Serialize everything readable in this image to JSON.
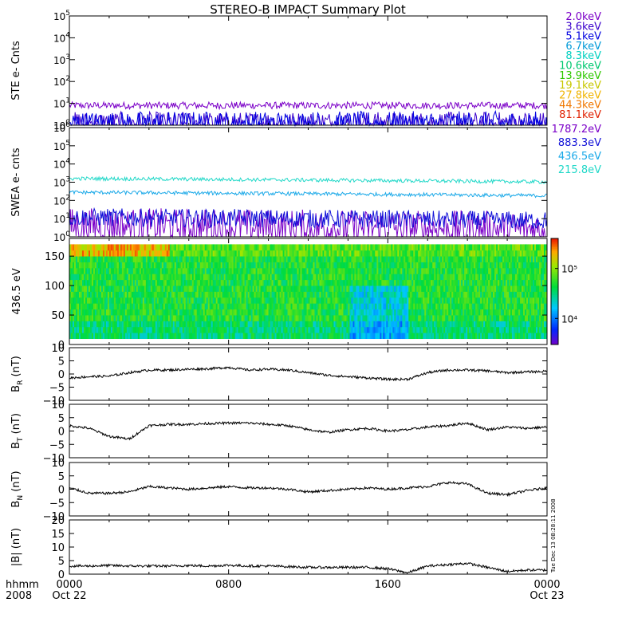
{
  "chart_data": {
    "type": "line",
    "title": "STEREO-B IMPACT Summary Plot",
    "x_axis": {
      "ticks": [
        "0000",
        "0800",
        "1600",
        "0000"
      ],
      "tick_hours": [
        0,
        8,
        16,
        24
      ],
      "date_labels": [
        "Oct 22",
        "",
        "",
        "Oct 23"
      ],
      "corner_labels": [
        "hhmm",
        "2008"
      ]
    },
    "timestamp": "Tue Dec 13 08:28:11 2008",
    "panels": [
      {
        "id": "ste",
        "ylabel": "STE e- Cnts",
        "scale": "log",
        "ylim": [
          1,
          100000
        ],
        "ytick_exponents": [
          0,
          1,
          2,
          3,
          4,
          5
        ],
        "series": [
          {
            "name": "2.0keV",
            "color": "#7b00c8",
            "level": 8,
            "noise": 0.08
          },
          {
            "name": "3.6keV",
            "color": "#3a00cc",
            "level": 1.3,
            "noise": 0.25
          },
          {
            "name": "5.1keV",
            "color": "#0000e0",
            "level": 1.1,
            "noise": 0.3
          },
          {
            "name": "6.7keV",
            "color": "#009ad8",
            "level": null
          },
          {
            "name": "8.3keV",
            "color": "#00d0c0",
            "level": null
          },
          {
            "name": "10.6keV",
            "color": "#00c870",
            "level": null
          },
          {
            "name": "13.9keV",
            "color": "#30c800",
            "level": null
          },
          {
            "name": "19.1keV",
            "color": "#c8c800",
            "level": null
          },
          {
            "name": "27.8keV",
            "color": "#f0b400",
            "level": null
          },
          {
            "name": "44.3keV",
            "color": "#f07800",
            "level": null
          },
          {
            "name": "81.1keV",
            "color": "#e02000",
            "level": null
          }
        ]
      },
      {
        "id": "swea",
        "ylabel": "SWEA e- cnts",
        "scale": "log",
        "ylim": [
          1,
          1000000
        ],
        "ytick_exponents": [
          0,
          1,
          2,
          3,
          4,
          5,
          6
        ],
        "series": [
          {
            "name": "1787.2eV",
            "color": "#7b00c8",
            "level": 4,
            "noise": 0.5
          },
          {
            "name": "883.3eV",
            "color": "#1010d8",
            "level": 12,
            "noise": 0.25
          },
          {
            "name": "436.5eV",
            "color": "#18a8e8",
            "level": 280,
            "noise": 0.05
          },
          {
            "name": "215.8eV",
            "color": "#20d8c8",
            "level": 1600,
            "noise": 0.05
          }
        ]
      },
      {
        "id": "pad",
        "ylabel": "436.5 eV",
        "type": "heatmap",
        "ylim": [
          0,
          180
        ],
        "yticks": [
          0,
          50,
          100,
          150
        ],
        "colorbar": {
          "scale": "log",
          "tick_labels": [
            "10⁵",
            "10⁴"
          ],
          "tick_values": [
            100000,
            10000
          ]
        }
      },
      {
        "id": "br",
        "ylabel": "B",
        "ylabel_sub": "R",
        "ylabel_unit": "(nT)",
        "scale": "linear",
        "ylim": [
          -10,
          10
        ],
        "yticks": [
          -10,
          -5,
          0,
          5,
          10
        ],
        "x": [
          0,
          1,
          2,
          3,
          4,
          5,
          6,
          7,
          8,
          9,
          10,
          11,
          12,
          13,
          14,
          15,
          16,
          17,
          18,
          19,
          20,
          21,
          22,
          23,
          24
        ],
        "values": [
          -1.5,
          -1.0,
          -0.8,
          0.5,
          1.5,
          1.5,
          1.8,
          2.0,
          2.5,
          1.5,
          1.8,
          1.5,
          0.5,
          -0.5,
          -1.0,
          -1.5,
          -2.0,
          -2.0,
          0.5,
          1.5,
          1.5,
          1.2,
          0.5,
          0.8,
          1.0
        ],
        "color": "#000000"
      },
      {
        "id": "bt",
        "ylabel": "B",
        "ylabel_sub": "T",
        "ylabel_unit": "(nT)",
        "scale": "linear",
        "ylim": [
          -10,
          10
        ],
        "yticks": [
          -10,
          -5,
          0,
          5,
          10
        ],
        "x": [
          0,
          1,
          2,
          3,
          4,
          5,
          6,
          7,
          8,
          9,
          10,
          11,
          12,
          13,
          14,
          15,
          16,
          17,
          18,
          19,
          20,
          21,
          22,
          23,
          24
        ],
        "values": [
          2.0,
          1.0,
          -2.0,
          -3.0,
          2.0,
          2.5,
          2.5,
          2.8,
          3.0,
          3.0,
          2.5,
          2.0,
          0.5,
          -0.5,
          0.5,
          1.0,
          0.0,
          0.5,
          1.5,
          2.0,
          3.0,
          0.5,
          1.5,
          1.0,
          1.5
        ],
        "color": "#000000"
      },
      {
        "id": "bn",
        "ylabel": "B",
        "ylabel_sub": "N",
        "ylabel_unit": "(nT)",
        "scale": "linear",
        "ylim": [
          -10,
          10
        ],
        "yticks": [
          -10,
          -5,
          0,
          5,
          10
        ],
        "x": [
          0,
          1,
          2,
          3,
          4,
          5,
          6,
          7,
          8,
          9,
          10,
          11,
          12,
          13,
          14,
          15,
          16,
          17,
          18,
          19,
          20,
          21,
          22,
          23,
          24
        ],
        "values": [
          0.5,
          -1.5,
          -1.5,
          -1.0,
          1.0,
          0.5,
          0.0,
          0.5,
          1.0,
          0.5,
          0.5,
          0.0,
          -1.0,
          -0.5,
          0.0,
          0.5,
          0.0,
          0.5,
          1.0,
          2.5,
          2.0,
          -1.5,
          -2.0,
          -0.5,
          0.5
        ],
        "color": "#000000"
      },
      {
        "id": "bmag",
        "ylabel": "|B|",
        "ylabel_unit": "(nT)",
        "scale": "linear",
        "ylim": [
          0,
          20
        ],
        "yticks": [
          0,
          5,
          10,
          15,
          20
        ],
        "x": [
          0,
          1,
          2,
          3,
          4,
          5,
          6,
          7,
          8,
          9,
          10,
          11,
          12,
          13,
          14,
          15,
          16,
          17,
          18,
          19,
          20,
          21,
          22,
          23,
          24
        ],
        "values": [
          3.0,
          3.0,
          3.2,
          3.0,
          3.0,
          3.0,
          3.2,
          3.0,
          3.3,
          3.0,
          3.0,
          2.8,
          2.5,
          2.5,
          2.5,
          2.5,
          2.0,
          0.5,
          3.0,
          3.5,
          4.0,
          2.5,
          1.0,
          1.5,
          1.5
        ],
        "color": "#000000"
      }
    ]
  }
}
